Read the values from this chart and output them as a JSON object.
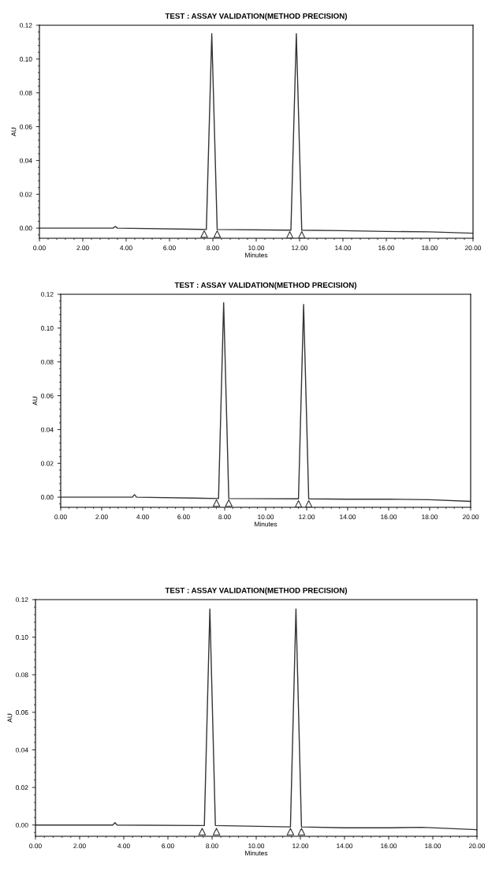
{
  "chart_data": [
    {
      "type": "line",
      "title": "TEST : ASSAY VALIDATION(METHOD PRECISION)",
      "xlabel": "Minutes",
      "ylabel": "AU",
      "xlim": [
        0,
        20
      ],
      "ylim": [
        -0.006,
        0.12
      ],
      "xticks": [
        {
          "value": 0,
          "label": "0.00"
        },
        {
          "value": 2,
          "label": "2.00"
        },
        {
          "value": 4,
          "label": "4.00"
        },
        {
          "value": 6,
          "label": "6.00"
        },
        {
          "value": 8,
          "label": "8.00"
        },
        {
          "value": 10,
          "label": "10.00"
        },
        {
          "value": 12,
          "label": "12.00"
        },
        {
          "value": 14,
          "label": "14.00"
        },
        {
          "value": 16,
          "label": "16.00"
        },
        {
          "value": 18,
          "label": "18.00"
        },
        {
          "value": 20,
          "label": "20.00"
        }
      ],
      "yticks": [
        {
          "value": 0,
          "label": "0.00"
        },
        {
          "value": 0.02,
          "label": "0.02"
        },
        {
          "value": 0.04,
          "label": "0.04"
        },
        {
          "value": 0.06,
          "label": "0.06"
        },
        {
          "value": 0.08,
          "label": "0.08"
        },
        {
          "value": 0.1,
          "label": "0.10"
        },
        {
          "value": 0.12,
          "label": "0.12"
        }
      ],
      "series": [
        {
          "color": "#333333",
          "x": [
            0,
            3.4,
            3.5,
            3.6,
            7.7,
            7.95,
            8.2,
            11.6,
            11.85,
            12.1,
            14,
            16,
            18,
            20
          ],
          "values": [
            0,
            0,
            0.001,
            0,
            -0.0008,
            0.115,
            -0.0008,
            -0.0012,
            0.115,
            -0.0012,
            -0.0015,
            -0.002,
            -0.0022,
            -0.003
          ]
        },
        {
          "type": "scatter",
          "marker": "triangle",
          "color": "#333333",
          "x": [
            7.6,
            8.2,
            11.55,
            12.1
          ],
          "values": [
            -0.0035,
            -0.0035,
            -0.004,
            -0.004
          ]
        }
      ]
    },
    {
      "type": "line",
      "title": "TEST : ASSAY VALIDATION(METHOD PRECISION)",
      "xlabel": "Minutes",
      "ylabel": "AU",
      "xlim": [
        0,
        20
      ],
      "ylim": [
        -0.006,
        0.12
      ],
      "xticks": [
        {
          "value": 0,
          "label": "0.00"
        },
        {
          "value": 2,
          "label": "2.00"
        },
        {
          "value": 4,
          "label": "4.00"
        },
        {
          "value": 6,
          "label": "6.00"
        },
        {
          "value": 8,
          "label": "8.00"
        },
        {
          "value": 10,
          "label": "10.00"
        },
        {
          "value": 12,
          "label": "12.00"
        },
        {
          "value": 14,
          "label": "14.00"
        },
        {
          "value": 16,
          "label": "16.00"
        },
        {
          "value": 18,
          "label": "18.00"
        },
        {
          "value": 20,
          "label": "20.00"
        }
      ],
      "yticks": [
        {
          "value": 0,
          "label": "0.00"
        },
        {
          "value": 0.02,
          "label": "0.02"
        },
        {
          "value": 0.04,
          "label": "0.04"
        },
        {
          "value": 0.06,
          "label": "0.06"
        },
        {
          "value": 0.08,
          "label": "0.08"
        },
        {
          "value": 0.1,
          "label": "0.10"
        },
        {
          "value": 0.12,
          "label": "0.12"
        }
      ],
      "series": [
        {
          "color": "#333333",
          "x": [
            0,
            3.5,
            3.6,
            3.7,
            7.7,
            7.95,
            8.2,
            11.6,
            11.85,
            12.1,
            14,
            16,
            18,
            20
          ],
          "values": [
            0,
            0,
            0.0015,
            0,
            -0.0008,
            0.115,
            -0.0008,
            -0.001,
            0.114,
            -0.001,
            -0.0012,
            -0.0012,
            -0.0015,
            -0.0025
          ]
        },
        {
          "type": "scatter",
          "marker": "triangle",
          "color": "#333333",
          "x": [
            7.6,
            8.2,
            11.6,
            12.1
          ],
          "values": [
            -0.0035,
            -0.0035,
            -0.004,
            -0.004
          ]
        }
      ]
    },
    {
      "type": "line",
      "title": "TEST : ASSAY VALIDATION(METHOD PRECISION)",
      "xlabel": "Minutes",
      "ylabel": "AU",
      "xlim": [
        0,
        20
      ],
      "ylim": [
        -0.006,
        0.12
      ],
      "xticks": [
        {
          "value": 0,
          "label": "0.00"
        },
        {
          "value": 2,
          "label": "2.00"
        },
        {
          "value": 4,
          "label": "4.00"
        },
        {
          "value": 6,
          "label": "6.00"
        },
        {
          "value": 8,
          "label": "8.00"
        },
        {
          "value": 10,
          "label": "10.00"
        },
        {
          "value": 12,
          "label": "12.00"
        },
        {
          "value": 14,
          "label": "14.00"
        },
        {
          "value": 16,
          "label": "16.00"
        },
        {
          "value": 18,
          "label": "18.00"
        },
        {
          "value": 20,
          "label": "20.00"
        }
      ],
      "yticks": [
        {
          "value": 0,
          "label": "0.00"
        },
        {
          "value": 0.02,
          "label": "0.02"
        },
        {
          "value": 0.04,
          "label": "0.04"
        },
        {
          "value": 0.06,
          "label": "0.06"
        },
        {
          "value": 0.08,
          "label": "0.08"
        },
        {
          "value": 0.1,
          "label": "0.10"
        },
        {
          "value": 0.12,
          "label": "0.12"
        }
      ],
      "series": [
        {
          "color": "#333333",
          "x": [
            0,
            3.5,
            3.6,
            3.7,
            7.65,
            7.9,
            8.15,
            11.55,
            11.8,
            12.05,
            14,
            16,
            17.5,
            20
          ],
          "values": [
            0,
            0,
            0.0012,
            0,
            -0.0003,
            0.115,
            -0.0003,
            -0.001,
            0.115,
            -0.001,
            -0.0015,
            -0.0015,
            -0.0012,
            -0.0025
          ]
        },
        {
          "type": "scatter",
          "marker": "triangle",
          "color": "#333333",
          "x": [
            7.55,
            8.2,
            11.55,
            12.05
          ],
          "values": [
            -0.0035,
            -0.0035,
            -0.0035,
            -0.0035
          ]
        }
      ]
    }
  ]
}
